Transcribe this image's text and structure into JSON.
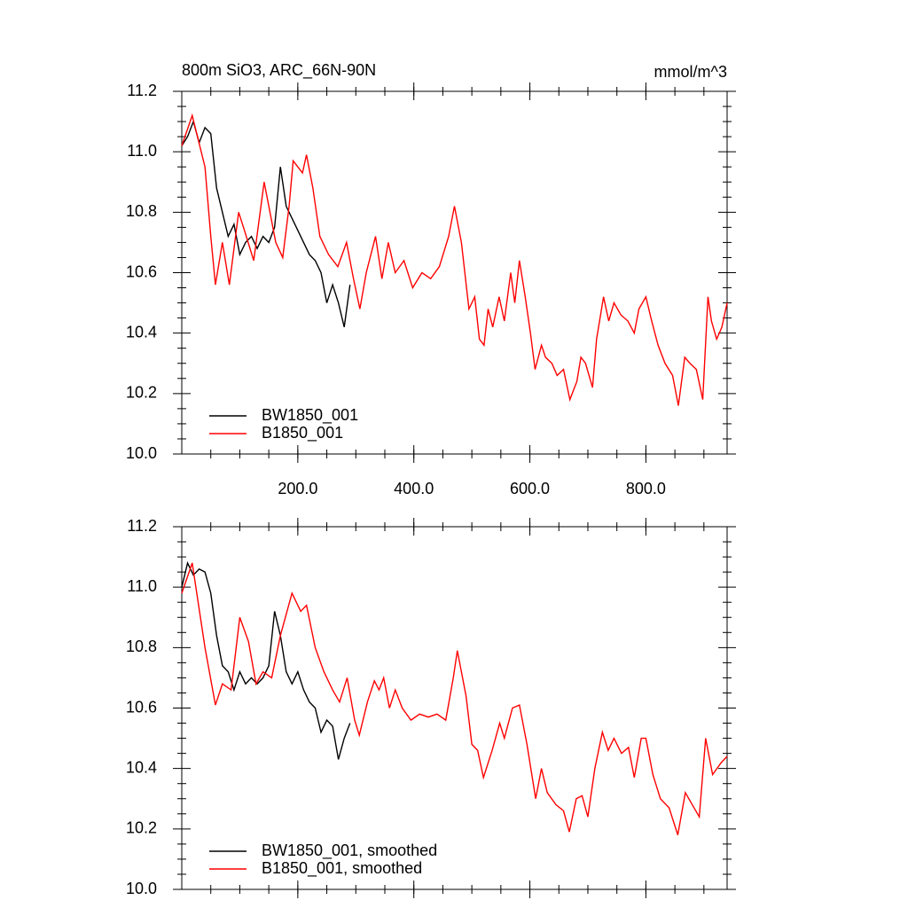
{
  "chart_data": [
    {
      "type": "line",
      "title": "800m SiO3, ARC_66N-90N",
      "units": "mmol/m^3",
      "xlim": [
        0,
        940
      ],
      "xticks": [
        {
          "value": 200,
          "label": "200.0"
        },
        {
          "value": 400,
          "label": "400.0"
        },
        {
          "value": 600,
          "label": "600.0"
        },
        {
          "value": 800,
          "label": "800.0"
        }
      ],
      "ylim": [
        10.0,
        11.2
      ],
      "yticks": [
        {
          "value": 10.0,
          "label": "10.0"
        },
        {
          "value": 10.2,
          "label": "10.2"
        },
        {
          "value": 10.4,
          "label": "10.4"
        },
        {
          "value": 10.6,
          "label": "10.6"
        },
        {
          "value": 10.8,
          "label": "10.8"
        },
        {
          "value": 11.0,
          "label": "11.0"
        },
        {
          "value": 11.2,
          "label": "11.2"
        }
      ],
      "series": [
        {
          "name": "BW1850_001",
          "color": "#000000",
          "x": [
            0,
            10,
            20,
            30,
            40,
            50,
            60,
            70,
            80,
            90,
            100,
            110,
            120,
            130,
            140,
            150,
            160,
            170,
            180,
            190,
            200,
            210,
            220,
            230,
            240,
            250,
            260,
            270,
            280,
            290
          ],
          "values": [
            11.02,
            11.05,
            11.1,
            11.03,
            11.08,
            11.06,
            10.88,
            10.8,
            10.72,
            10.76,
            10.66,
            10.7,
            10.72,
            10.68,
            10.72,
            10.7,
            10.75,
            10.95,
            10.82,
            10.78,
            10.74,
            10.7,
            10.66,
            10.64,
            10.6,
            10.5,
            10.56,
            10.5,
            10.42,
            10.56
          ]
        },
        {
          "name": "B1850_001",
          "color": "#ff0000",
          "x": [
            0,
            18,
            40,
            50,
            58,
            70,
            82,
            98,
            108,
            124,
            142,
            154,
            162,
            174,
            185,
            192,
            208,
            215,
            226,
            238,
            253,
            269,
            284,
            296,
            307,
            318,
            334,
            345,
            356,
            368,
            383,
            398,
            414,
            429,
            444,
            460,
            470,
            482,
            495,
            505,
            513,
            521,
            528,
            536,
            547,
            556,
            567,
            574,
            582,
            592,
            601,
            609,
            620,
            627,
            638,
            647,
            658,
            669,
            681,
            688,
            696,
            708,
            715,
            727,
            736,
            745,
            757,
            769,
            780,
            788,
            800,
            810,
            821,
            833,
            846,
            856,
            867,
            876,
            887,
            898,
            907,
            913,
            922,
            931,
            940
          ],
          "values": [
            11.02,
            11.12,
            10.95,
            10.72,
            10.56,
            10.7,
            10.56,
            10.8,
            10.74,
            10.64,
            10.9,
            10.78,
            10.7,
            10.65,
            10.82,
            10.97,
            10.93,
            10.99,
            10.88,
            10.72,
            10.66,
            10.62,
            10.7,
            10.58,
            10.48,
            10.6,
            10.72,
            10.58,
            10.7,
            10.6,
            10.64,
            10.55,
            10.6,
            10.58,
            10.62,
            10.72,
            10.82,
            10.7,
            10.48,
            10.52,
            10.38,
            10.36,
            10.48,
            10.42,
            10.52,
            10.44,
            10.6,
            10.5,
            10.64,
            10.52,
            10.4,
            10.28,
            10.36,
            10.32,
            10.3,
            10.26,
            10.28,
            10.18,
            10.24,
            10.32,
            10.3,
            10.22,
            10.38,
            10.52,
            10.44,
            10.5,
            10.46,
            10.44,
            10.4,
            10.48,
            10.52,
            10.44,
            10.36,
            10.3,
            10.26,
            10.16,
            10.32,
            10.3,
            10.28,
            10.18,
            10.52,
            10.44,
            10.38,
            10.42,
            10.5
          ]
        }
      ]
    },
    {
      "type": "line",
      "xlim": [
        0,
        940
      ],
      "ylim": [
        10.0,
        11.2
      ],
      "yticks": [
        {
          "value": 10.0,
          "label": "10.0"
        },
        {
          "value": 10.2,
          "label": "10.2"
        },
        {
          "value": 10.4,
          "label": "10.4"
        },
        {
          "value": 10.6,
          "label": "10.6"
        },
        {
          "value": 10.8,
          "label": "10.8"
        },
        {
          "value": 11.0,
          "label": "11.0"
        },
        {
          "value": 11.2,
          "label": "11.2"
        }
      ],
      "series": [
        {
          "name": "BW1850_001, smoothed",
          "color": "#000000",
          "x": [
            0,
            10,
            20,
            30,
            40,
            50,
            60,
            70,
            80,
            90,
            100,
            110,
            120,
            130,
            140,
            150,
            160,
            170,
            180,
            190,
            200,
            210,
            220,
            230,
            240,
            250,
            260,
            270,
            280,
            290
          ],
          "values": [
            11.0,
            11.08,
            11.04,
            11.06,
            11.05,
            10.98,
            10.84,
            10.74,
            10.72,
            10.66,
            10.72,
            10.68,
            10.7,
            10.68,
            10.7,
            10.74,
            10.92,
            10.84,
            10.72,
            10.68,
            10.72,
            10.66,
            10.62,
            10.6,
            10.52,
            10.56,
            10.54,
            10.43,
            10.5,
            10.55
          ]
        },
        {
          "name": "B1850_001, smoothed",
          "color": "#ff0000",
          "x": [
            0,
            18,
            40,
            58,
            70,
            85,
            100,
            115,
            128,
            140,
            155,
            170,
            190,
            205,
            215,
            230,
            245,
            260,
            272,
            285,
            298,
            306,
            320,
            332,
            340,
            348,
            358,
            368,
            380,
            395,
            410,
            425,
            440,
            455,
            468,
            475,
            490,
            500,
            510,
            520,
            535,
            548,
            556,
            570,
            582,
            595,
            610,
            620,
            630,
            645,
            658,
            668,
            680,
            690,
            700,
            712,
            725,
            735,
            745,
            758,
            770,
            780,
            792,
            800,
            812,
            825,
            840,
            855,
            868,
            880,
            892,
            903,
            915,
            930,
            940
          ],
          "values": [
            10.98,
            11.08,
            10.8,
            10.61,
            10.68,
            10.66,
            10.9,
            10.82,
            10.68,
            10.72,
            10.7,
            10.84,
            10.98,
            10.92,
            10.94,
            10.8,
            10.72,
            10.66,
            10.62,
            10.7,
            10.56,
            10.51,
            10.62,
            10.69,
            10.66,
            10.7,
            10.6,
            10.66,
            10.6,
            10.56,
            10.58,
            10.57,
            10.58,
            10.56,
            10.7,
            10.79,
            10.64,
            10.48,
            10.46,
            10.37,
            10.46,
            10.55,
            10.5,
            10.6,
            10.61,
            10.48,
            10.3,
            10.4,
            10.32,
            10.28,
            10.26,
            10.19,
            10.3,
            10.31,
            10.24,
            10.4,
            10.52,
            10.46,
            10.5,
            10.45,
            10.47,
            10.37,
            10.5,
            10.5,
            10.38,
            10.3,
            10.27,
            10.18,
            10.32,
            10.28,
            10.24,
            10.5,
            10.38,
            10.42,
            10.44
          ]
        }
      ]
    }
  ]
}
